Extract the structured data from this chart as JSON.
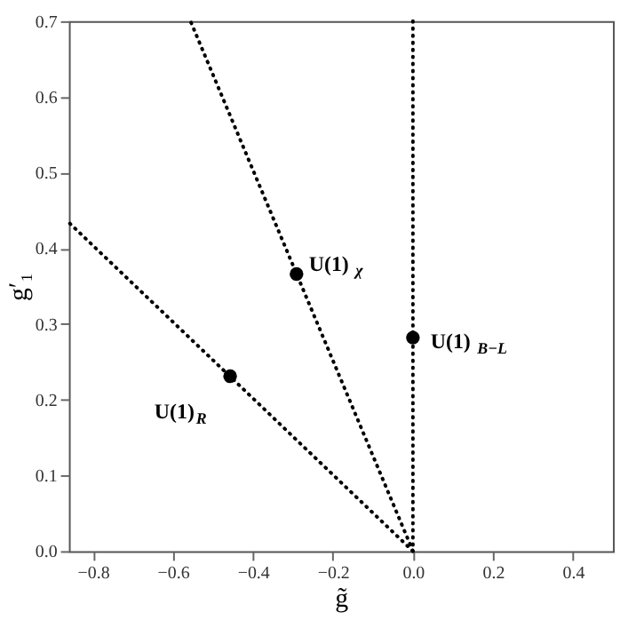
{
  "chart_data": {
    "type": "line",
    "xlabel": "g̃",
    "ylabel": "g′₁",
    "xlim": [
      -0.86,
      0.5
    ],
    "ylim": [
      0,
      0.7
    ],
    "xticks": [
      -0.8,
      -0.6,
      -0.4,
      -0.2,
      {
        "value": 0,
        "label": "0.0"
      },
      0.2,
      0.4
    ],
    "yticks": [
      {
        "value": 0,
        "label": "0.0"
      },
      0.1,
      0.2,
      0.3,
      0.4,
      0.5,
      0.6,
      0.7
    ],
    "grid": false,
    "line_style": "dotted",
    "series": [
      {
        "color": "#000000",
        "x": [
          0,
          -0.556
        ],
        "values": [
          0,
          0.7
        ]
      },
      {
        "color": "#000000",
        "x": [
          0,
          -0.86
        ],
        "values": [
          0,
          0.434
        ]
      },
      {
        "type": "scatter",
        "color": "#000000",
        "marker": "circle",
        "x": [
          -0.291,
          -0.457,
          0
        ],
        "values": [
          0.366,
          0.231,
          0.282
        ]
      }
    ],
    "ref_lines": [
      {
        "axis": "x",
        "value": 0,
        "color": "#000000",
        "line_style": "dotted"
      }
    ],
    "annotations": [
      {
        "text": "U(1)$_{χ}$",
        "x": -0.291,
        "y": 0.366
      },
      {
        "text": "U(1)$_{R}$",
        "x": -0.457,
        "y": 0.231
      },
      {
        "text": "U(1)$_{B−L}$",
        "x": 0,
        "y": 0.282
      }
    ]
  }
}
